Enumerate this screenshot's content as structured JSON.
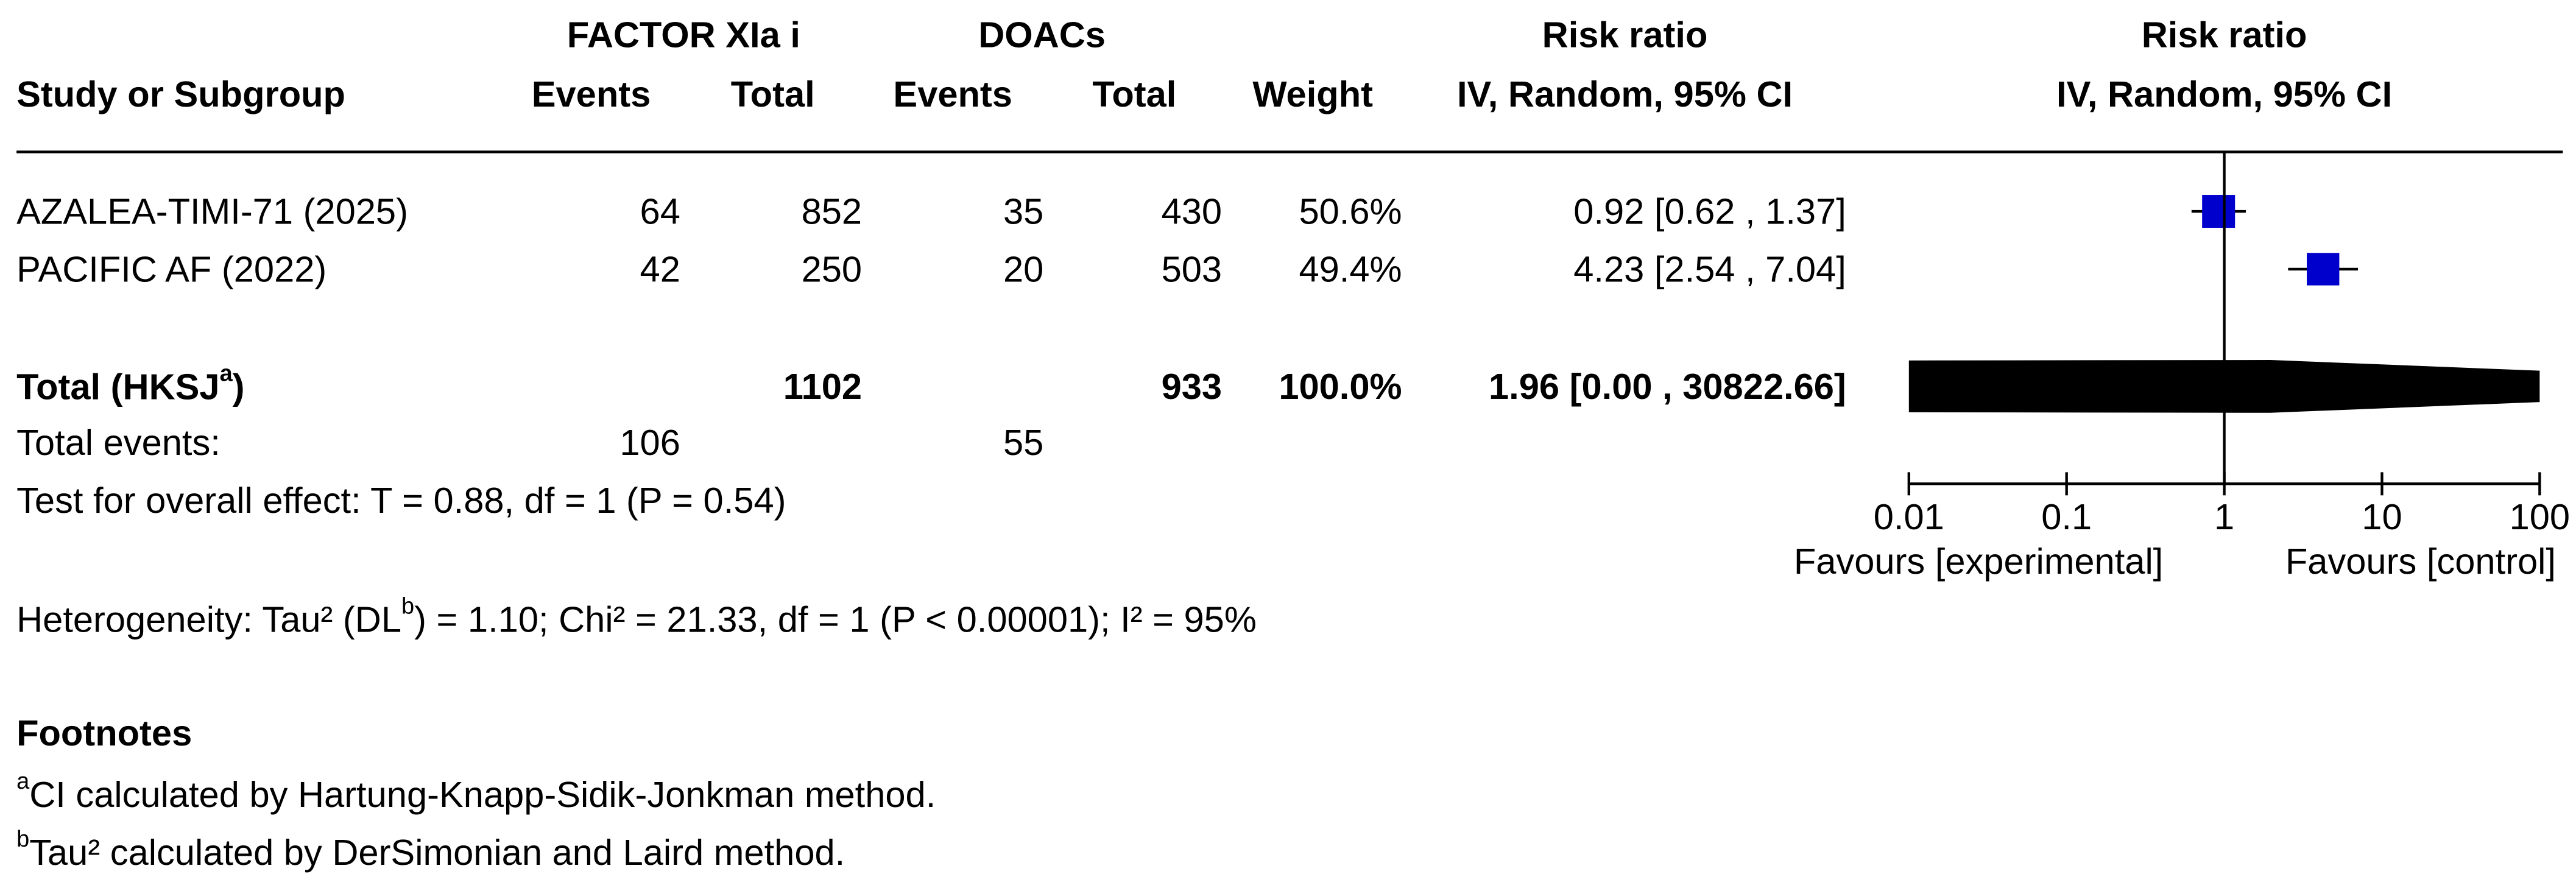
{
  "chart_data": {
    "type": "forest",
    "group_headers": [
      "FACTOR XIa i",
      "DOACs",
      "Risk ratio",
      "Risk ratio"
    ],
    "column_headers": [
      "Study or Subgroup",
      "Events",
      "Total",
      "Events",
      "Total",
      "Weight",
      "IV, Random, 95% CI",
      "IV, Random, 95% CI"
    ],
    "studies": [
      {
        "name": "AZALEA-TIMI-71 (2025)",
        "events1": 64,
        "total1": 852,
        "events2": 35,
        "total2": 430,
        "weight": 50.6,
        "weight_label": "50.6%",
        "rr": 0.92,
        "ci_low": 0.62,
        "ci_high": 1.37,
        "ci_label": "0.92 [0.62 , 1.37]"
      },
      {
        "name": "PACIFIC AF (2022)",
        "events1": 42,
        "total1": 250,
        "events2": 20,
        "total2": 503,
        "weight": 49.4,
        "weight_label": "49.4%",
        "rr": 4.23,
        "ci_low": 2.54,
        "ci_high": 7.04,
        "ci_label": "4.23 [2.54 , 7.04]"
      }
    ],
    "total": {
      "name": [
        "Total (HKSJ",
        "a",
        ")"
      ],
      "total1": 1102,
      "total2": 933,
      "weight": 100.0,
      "weight_label": "100.0%",
      "rr": 1.96,
      "ci_low": 0.0,
      "ci_high": 30822.66,
      "ci_label": "1.96 [0.00 , 30822.66]"
    },
    "total_events": {
      "label": "Total events:",
      "events1": 106,
      "events2": 55
    },
    "overall_effect": "Test for overall effect: T = 0.88, df = 1 (P = 0.54)",
    "heterogeneity": [
      "Heterogeneity: Tau² (DL",
      "b",
      ") = 1.10; Chi² = 21.33, df = 1 (P < 0.00001); I² = 95%"
    ],
    "footnotes_title": "Footnotes",
    "footnotes": [
      {
        "mark": "a",
        "text": "CI calculated by Hartung-Knapp-Sidik-Jonkman method."
      },
      {
        "mark": "b",
        "text": "Tau² calculated by DerSimonian and Laird method."
      }
    ],
    "x_log": true,
    "xlim": [
      0.01,
      100
    ],
    "xticks": [
      0.01,
      0.1,
      1,
      10,
      100
    ],
    "reference_line": 1,
    "favours": [
      "Favours [experimental]",
      "Favours [control]"
    ],
    "marker_color": "#0000cc"
  }
}
